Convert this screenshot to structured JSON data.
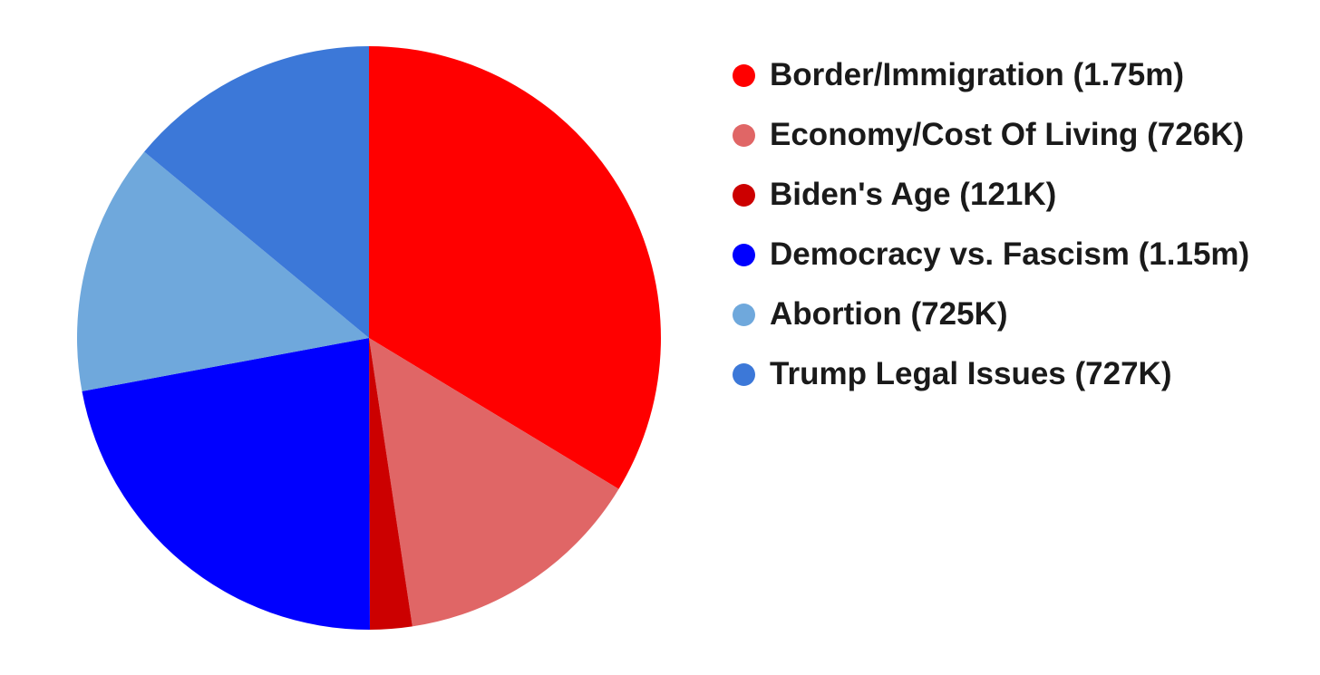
{
  "chart_data": {
    "type": "pie",
    "title": "",
    "legend_placement": "right",
    "start_angle": "12 o'clock",
    "direction": "clockwise",
    "slices": [
      {
        "label": "Border/Immigration (1.75m)",
        "category": "Border/Immigration",
        "value": 1750000,
        "color": "#ff0000"
      },
      {
        "label": "Economy/Cost Of Living (726K)",
        "category": "Economy/Cost Of Living",
        "value": 726000,
        "color": "#e06666"
      },
      {
        "label": "Biden's Age (121K)",
        "category": "Biden's Age",
        "value": 121000,
        "color": "#cc0000"
      },
      {
        "label": "Democracy vs. Fascism (1.15m)",
        "category": "Democracy vs. Fascism",
        "value": 1150000,
        "color": "#0000ff"
      },
      {
        "label": "Abortion (725K)",
        "category": "Abortion",
        "value": 725000,
        "color": "#6fa8dc"
      },
      {
        "label": "Trump Legal Issues (727K)",
        "category": "Trump Legal Issues",
        "value": 727000,
        "color": "#3c78d8"
      }
    ]
  }
}
